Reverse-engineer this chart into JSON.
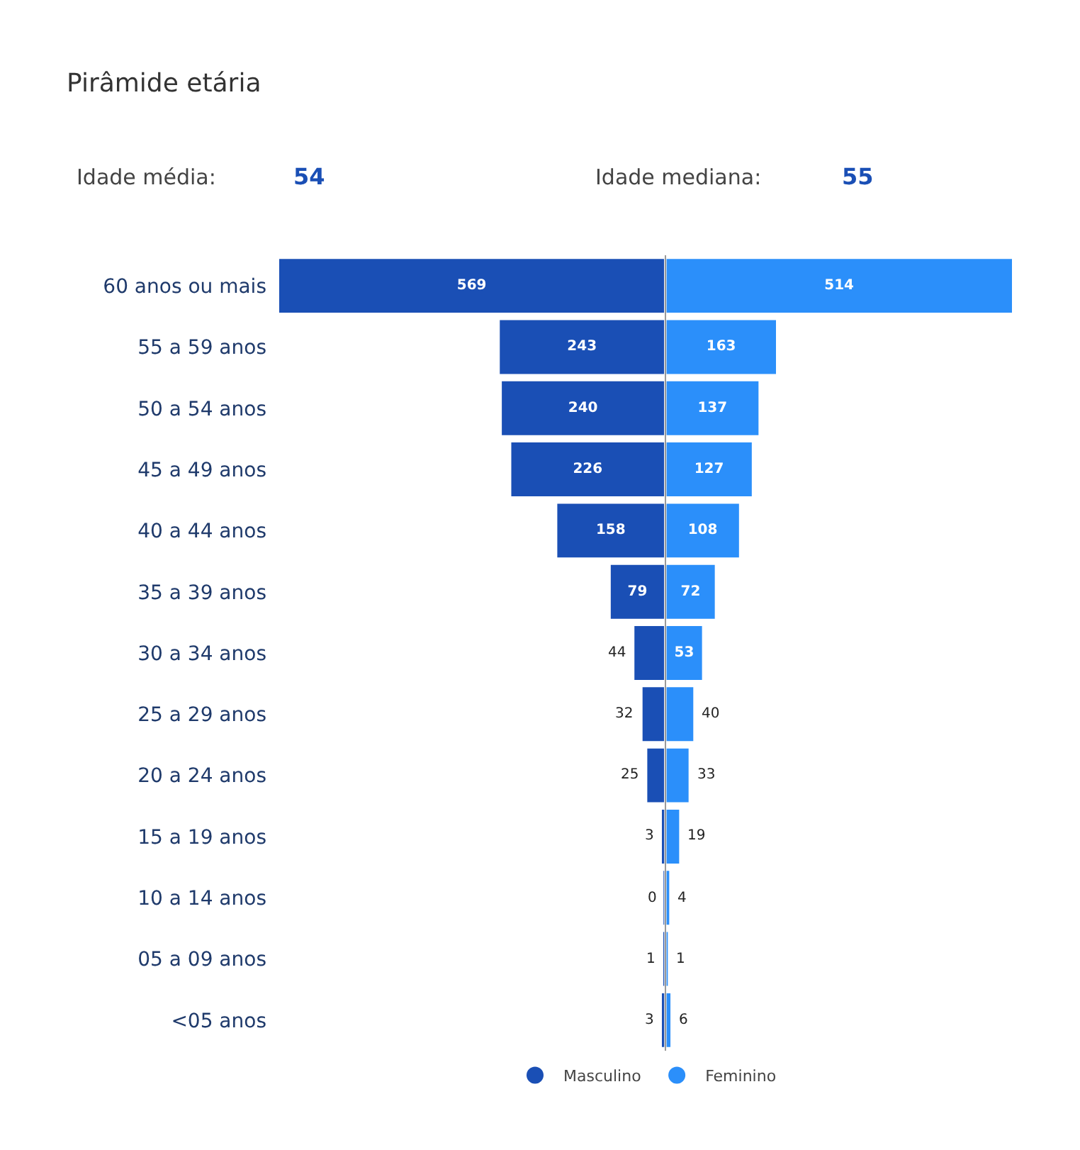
{
  "chart_data": [
    {
      "type": "bar",
      "orientation": "horizontal",
      "title": "Pirâmide etária",
      "annotations": [
        "Idade média:",
        "54",
        "Idade mediana:",
        "55"
      ],
      "categories": [
        "60 anos ou mais",
        "55 a 59 anos",
        "50 a 54 anos",
        "45 a 49 anos",
        "40 a 44 anos",
        "35 a 39 anos",
        "30 a 34 anos",
        "25 a 29 anos",
        "20 a 24 anos",
        "15 a 19 anos",
        "10 a 14 anos",
        "05 a 09 anos",
        "<05 anos"
      ],
      "series": [
        {
          "name": "Masculino",
          "color": "#1a4fb5",
          "values": [
            569,
            243,
            240,
            226,
            158,
            79,
            44,
            32,
            25,
            3,
            0,
            1,
            3
          ]
        }
      ],
      "xlim": [
        569,
        0
      ],
      "data_labels": true,
      "legend": "bottom",
      "tick_labels": "y"
    },
    {
      "type": "bar",
      "orientation": "horizontal",
      "categories": [
        null,
        null,
        null,
        null,
        null,
        null,
        null,
        null,
        null,
        null,
        null,
        null,
        null
      ],
      "series": [
        {
          "name": "Feminino",
          "color": "#2b8ffa",
          "values": [
            514,
            163,
            137,
            127,
            108,
            72,
            53,
            40,
            33,
            19,
            4,
            1,
            6
          ]
        }
      ],
      "xlim": [
        0,
        514
      ],
      "data_labels": true,
      "legend": "bottom",
      "tick_labels": false
    }
  ]
}
